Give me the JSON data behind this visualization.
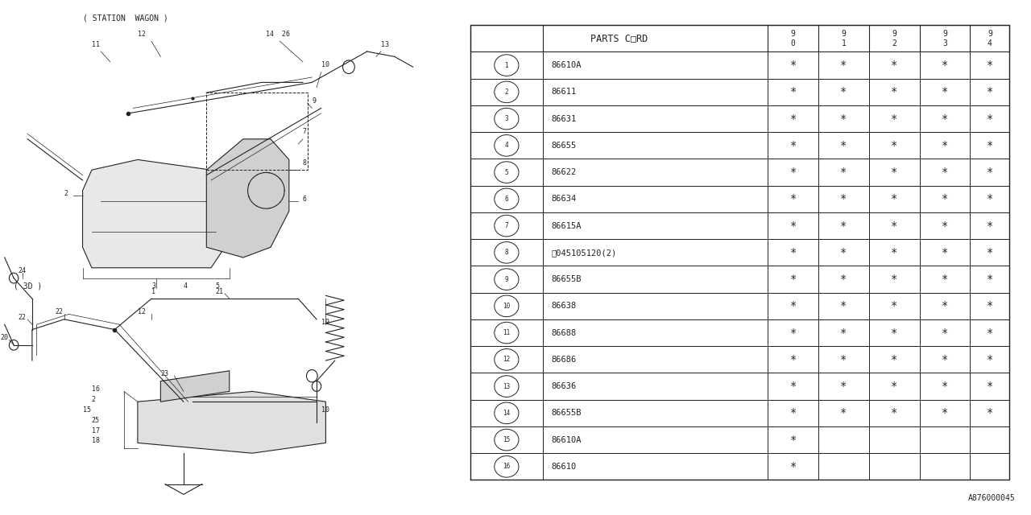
{
  "bg_color": "#ffffff",
  "diagram_code": "A876000045",
  "ec": "#222222",
  "table": {
    "rows": [
      {
        "num": "1",
        "part": "86610A",
        "marks": [
          1,
          1,
          1,
          1,
          1
        ]
      },
      {
        "num": "2",
        "part": "86611",
        "marks": [
          1,
          1,
          1,
          1,
          1
        ]
      },
      {
        "num": "3",
        "part": "86631",
        "marks": [
          1,
          1,
          1,
          1,
          1
        ]
      },
      {
        "num": "4",
        "part": "86655",
        "marks": [
          1,
          1,
          1,
          1,
          1
        ]
      },
      {
        "num": "5",
        "part": "86622",
        "marks": [
          1,
          1,
          1,
          1,
          1
        ]
      },
      {
        "num": "6",
        "part": "86634",
        "marks": [
          1,
          1,
          1,
          1,
          1
        ]
      },
      {
        "num": "7",
        "part": "86615A",
        "marks": [
          1,
          1,
          1,
          1,
          1
        ]
      },
      {
        "num": "8",
        "part": "Ⓢ045105120(2)",
        "marks": [
          1,
          1,
          1,
          1,
          1
        ]
      },
      {
        "num": "9",
        "part": "86655B",
        "marks": [
          1,
          1,
          1,
          1,
          1
        ]
      },
      {
        "num": "10",
        "part": "86638",
        "marks": [
          1,
          1,
          1,
          1,
          1
        ]
      },
      {
        "num": "11",
        "part": "86688",
        "marks": [
          1,
          1,
          1,
          1,
          1
        ]
      },
      {
        "num": "12",
        "part": "86686",
        "marks": [
          1,
          1,
          1,
          1,
          1
        ]
      },
      {
        "num": "13",
        "part": "86636",
        "marks": [
          1,
          1,
          1,
          1,
          1
        ]
      },
      {
        "num": "14",
        "part": "86655B",
        "marks": [
          1,
          1,
          1,
          1,
          1
        ]
      },
      {
        "num": "15",
        "part": "86610A",
        "marks": [
          1,
          0,
          0,
          0,
          0
        ]
      },
      {
        "num": "16",
        "part": "86610",
        "marks": [
          1,
          0,
          0,
          0,
          0
        ]
      }
    ]
  }
}
